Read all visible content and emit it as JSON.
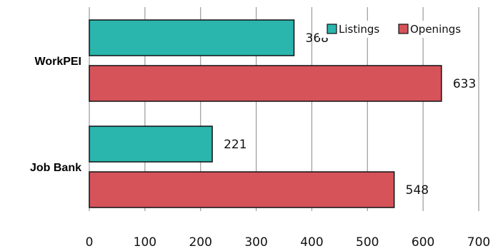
{
  "chart_data": {
    "type": "bar",
    "orientation": "horizontal",
    "categories": [
      "WorkPEI",
      "Job Bank"
    ],
    "series": [
      {
        "name": "Listings",
        "values": [
          368,
          221
        ],
        "color": "#2ab5ad"
      },
      {
        "name": "Openings",
        "values": [
          633,
          548
        ],
        "color": "#d6535a"
      }
    ],
    "xlim": [
      0,
      700
    ],
    "x_ticks": [
      0,
      100,
      200,
      300,
      400,
      500,
      600,
      700
    ],
    "grid": "vertical",
    "legend_placement": "top-right",
    "title": "",
    "xlabel": "",
    "ylabel": ""
  }
}
